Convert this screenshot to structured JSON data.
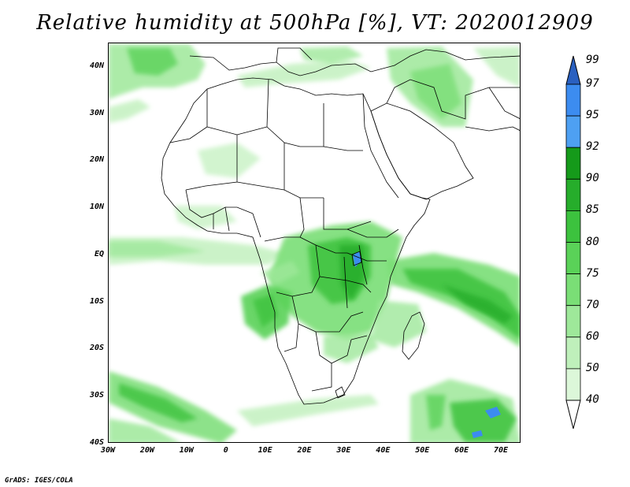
{
  "title": "Relative humidity at 500hPa [%], VT: 2020012909",
  "footer": "GrADS: IGES/COLA",
  "map": {
    "projection": "latlon",
    "lon_range": [
      -30,
      75
    ],
    "lat_range": [
      -40,
      45
    ],
    "lat_labels": [
      "40N",
      "30N",
      "20N",
      "10N",
      "EQ",
      "10S",
      "20S",
      "30S",
      "40S"
    ],
    "lat_values": [
      40,
      30,
      20,
      10,
      0,
      -10,
      -20,
      -30,
      -40
    ],
    "lon_labels": [
      "30W",
      "20W",
      "10W",
      "0",
      "10E",
      "20E",
      "30E",
      "40E",
      "50E",
      "60E",
      "70E"
    ],
    "lon_values": [
      -30,
      -20,
      -10,
      0,
      10,
      20,
      30,
      40,
      50,
      60,
      70
    ]
  },
  "colorbar": {
    "levels": [
      "99",
      "97",
      "95",
      "92",
      "90",
      "85",
      "80",
      "75",
      "70",
      "60",
      "50",
      "40"
    ],
    "colors": [
      "#1e5fc8",
      "#3c8cf0",
      "#4ea0f2",
      "#159a1a",
      "#26ad2b",
      "#3cc23e",
      "#5ad258",
      "#7ade76",
      "#9ee89a",
      "#bff0bb",
      "#dcf7d9",
      "#f2fdf1"
    ],
    "top_arrow_color": "#2a60c0",
    "bottom_arrow_color": "#ffffff"
  },
  "palette": {
    "green_light": "#dcf7d9",
    "green_mid": "#7ade76",
    "green_dark": "#26ad2b",
    "blue": "#3c8cf0"
  }
}
